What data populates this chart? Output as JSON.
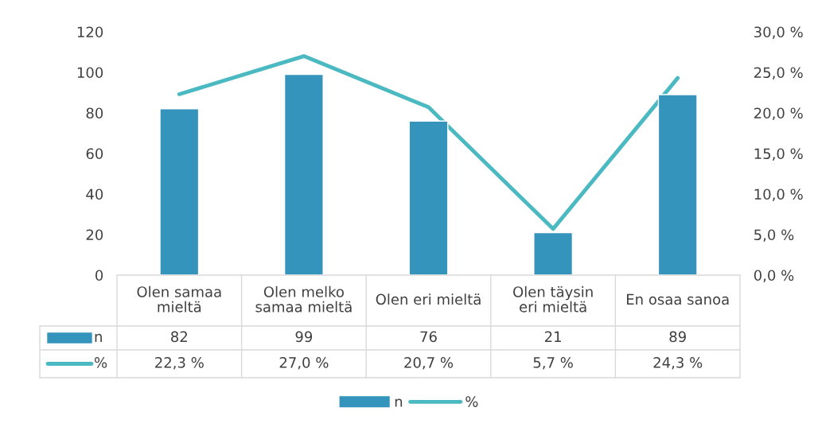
{
  "chart_data": {
    "type": "bar",
    "categories": [
      "Olen samaa mieltä",
      "Olen melko samaa mieltä",
      "Olen eri mieltä",
      "Olen täysin eri mieltä",
      "En osaa sanoa"
    ],
    "series": [
      {
        "name": "n",
        "color": "#3594bb",
        "values": [
          82,
          99,
          76,
          21,
          89
        ],
        "value_labels": [
          "82",
          "99",
          "76",
          "21",
          "89"
        ]
      },
      {
        "name": "%",
        "type": "line",
        "axis": "y2",
        "color": "#4bb9c1",
        "values": [
          22.3,
          27.0,
          20.7,
          5.7,
          24.3
        ],
        "value_labels": [
          "22,3 %",
          "27,0 %",
          "20,7 %",
          "5,7 %",
          "24,3 %"
        ]
      }
    ],
    "ylim": [
      0,
      120
    ],
    "yticks": [
      0,
      20,
      40,
      60,
      80,
      100,
      120
    ],
    "y2lim": [
      0,
      30
    ],
    "y2ticks": [
      {
        "value": 0,
        "label": "0,0 %"
      },
      {
        "value": 5,
        "label": "5,0 %"
      },
      {
        "value": 10,
        "label": "10,0 %"
      },
      {
        "value": 15,
        "label": "15,0 %"
      },
      {
        "value": 20,
        "label": "20,0 %"
      },
      {
        "value": 25,
        "label": "25,0 %"
      },
      {
        "value": 30,
        "label": "30,0 %"
      }
    ],
    "legend": "bottom",
    "marker": "none",
    "line_style": "solid"
  }
}
